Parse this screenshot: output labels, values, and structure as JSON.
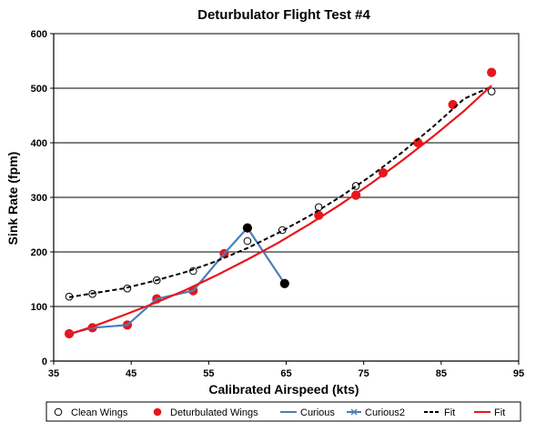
{
  "chart_data": {
    "type": "scatter",
    "title": "Deturbulator Flight Test #4",
    "xlabel": "Calibrated Airspeed  (kts)",
    "ylabel": "Sink Rate (fpm)",
    "xlim": [
      35,
      95
    ],
    "ylim": [
      0,
      600
    ],
    "xticks": [
      35,
      45,
      55,
      65,
      75,
      85,
      95
    ],
    "yticks": [
      0,
      100,
      200,
      300,
      400,
      500,
      600
    ],
    "grid": "horizontal",
    "legend_position": "bottom",
    "series": [
      {
        "name": "Clean Wings",
        "kind": "markers",
        "marker": "open-circle",
        "color": "#000000",
        "points": [
          [
            37,
            118
          ],
          [
            40,
            123
          ],
          [
            44.5,
            133
          ],
          [
            48.3,
            148
          ],
          [
            53,
            165
          ],
          [
            60,
            220
          ],
          [
            64.5,
            240
          ],
          [
            69.2,
            282
          ],
          [
            74,
            321
          ],
          [
            82,
            401
          ],
          [
            91.5,
            494
          ]
        ]
      },
      {
        "name": "Deturbulated Wings",
        "kind": "markers",
        "marker": "filled-circle",
        "color": "#e8161b",
        "points": [
          [
            37,
            50
          ],
          [
            40,
            61
          ],
          [
            44.5,
            66
          ],
          [
            48.3,
            114
          ],
          [
            53,
            129
          ],
          [
            57,
            197
          ],
          [
            60,
            244
          ],
          [
            64.8,
            142
          ],
          [
            69.2,
            267
          ],
          [
            74,
            304
          ],
          [
            77.5,
            345
          ],
          [
            82,
            400
          ],
          [
            86.5,
            470
          ],
          [
            91.5,
            529
          ]
        ]
      },
      {
        "name": "Curious",
        "kind": "line",
        "color": "#4a7ebb",
        "points": [
          [
            37,
            50
          ],
          [
            40,
            61
          ],
          [
            44.5,
            66
          ],
          [
            48.3,
            114
          ],
          [
            53,
            129
          ],
          [
            57,
            197
          ],
          [
            60,
            244
          ],
          [
            64.8,
            142
          ]
        ]
      },
      {
        "name": "Curious2",
        "kind": "markers",
        "marker": "filled-circle",
        "color": "#000000",
        "points": [
          [
            60,
            244
          ],
          [
            64.8,
            142
          ]
        ]
      },
      {
        "name": "Fit",
        "kind": "dashed-line",
        "color": "#000000",
        "points": [
          [
            37,
            117
          ],
          [
            40,
            124
          ],
          [
            44,
            133
          ],
          [
            48,
            147
          ],
          [
            52,
            163
          ],
          [
            56,
            183
          ],
          [
            60,
            207
          ],
          [
            64,
            235
          ],
          [
            68,
            266
          ],
          [
            72,
            301
          ],
          [
            76,
            340
          ],
          [
            80,
            383
          ],
          [
            84,
            430
          ],
          [
            88,
            481
          ],
          [
            91.5,
            503
          ]
        ]
      },
      {
        "name": "Fit",
        "kind": "line",
        "color": "#e8161b",
        "points": [
          [
            37,
            49
          ],
          [
            40,
            63
          ],
          [
            44,
            84
          ],
          [
            48,
            106
          ],
          [
            52,
            130
          ],
          [
            56,
            157
          ],
          [
            60,
            186
          ],
          [
            64,
            217
          ],
          [
            68,
            251
          ],
          [
            72,
            287
          ],
          [
            76,
            326
          ],
          [
            80,
            368
          ],
          [
            84,
            412
          ],
          [
            88,
            459
          ],
          [
            91.5,
            505
          ]
        ]
      }
    ]
  }
}
